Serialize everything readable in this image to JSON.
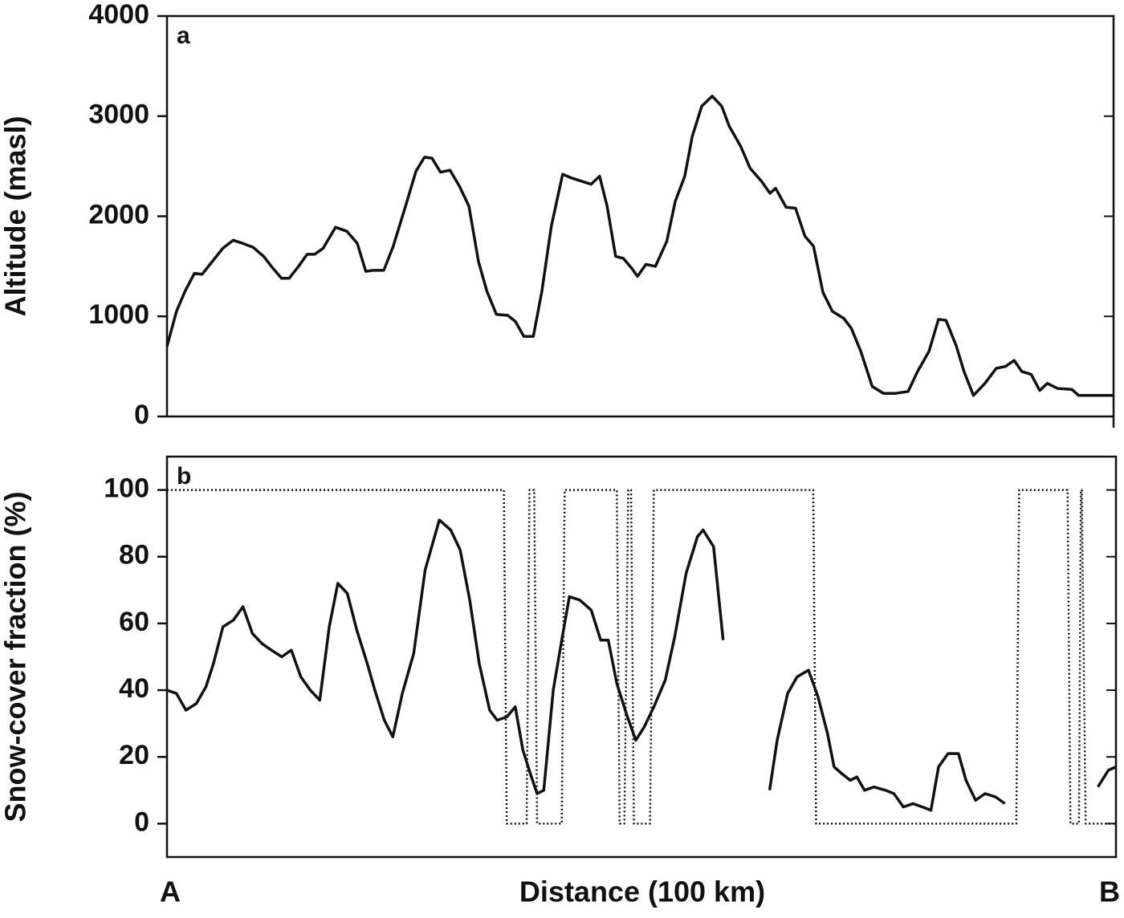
{
  "chart_data": [
    {
      "type": "line",
      "panel_label": "a",
      "ylabel": "Altitude (masl)",
      "xlim": [
        0,
        100
      ],
      "ylim": [
        0,
        4000
      ],
      "yticks": [
        0,
        1000,
        2000,
        3000,
        4000
      ],
      "series": [
        {
          "color": "#111111",
          "style": "solid",
          "x": [
            0,
            1.0,
            1.9,
            2.9,
            3.7,
            4.8,
            5.9,
            7.0,
            8.0,
            9.1,
            10.2,
            11.2,
            12.1,
            12.9,
            13.9,
            14.8,
            15.6,
            16.5,
            17.8,
            19.0,
            20.1,
            21.0,
            21.8,
            22.9,
            23.9,
            25.2,
            26.3,
            27.2,
            28.0,
            28.9,
            29.9,
            30.9,
            31.9,
            32.9,
            33.8,
            34.8,
            36.0,
            36.8,
            37.7,
            38.7,
            39.6,
            40.6,
            41.8,
            42.8,
            43.8,
            44.8,
            45.7,
            46.5,
            47.4,
            48.2,
            49.1,
            49.7,
            50.6,
            51.6,
            52.8,
            53.7,
            54.7,
            55.5,
            56.5,
            57.6,
            58.6,
            59.4,
            60.6,
            61.6,
            62.8,
            63.7,
            64.3,
            65.4,
            66.4,
            67.4,
            68.3,
            69.3,
            70.3,
            71.5,
            72.3,
            73.3,
            74.5,
            75.7,
            76.9,
            78.3,
            79.3,
            80.5,
            81.5,
            82.3,
            83.4,
            84.2,
            85.2,
            86.4,
            87.6,
            88.6,
            89.5,
            90.3,
            91.3,
            92.2,
            93.0,
            94.1,
            95.6,
            96.3,
            100
          ],
          "values": [
            700,
            1050,
            1250,
            1430,
            1420,
            1550,
            1680,
            1760,
            1730,
            1690,
            1600,
            1480,
            1380,
            1380,
            1500,
            1620,
            1620,
            1680,
            1890,
            1850,
            1730,
            1450,
            1460,
            1460,
            1700,
            2100,
            2450,
            2590,
            2580,
            2440,
            2460,
            2300,
            2100,
            1550,
            1250,
            1020,
            1010,
            950,
            800,
            800,
            1250,
            1900,
            2420,
            2380,
            2350,
            2320,
            2400,
            2100,
            1600,
            1580,
            1480,
            1400,
            1520,
            1500,
            1750,
            2150,
            2400,
            2800,
            3100,
            3200,
            3100,
            2900,
            2700,
            2480,
            2350,
            2230,
            2280,
            2090,
            2080,
            1800,
            1700,
            1240,
            1050,
            980,
            880,
            650,
            300,
            230,
            230,
            250,
            450,
            650,
            970,
            960,
            700,
            450,
            210,
            330,
            480,
            500,
            560,
            450,
            420,
            260,
            330,
            280,
            270,
            210,
            210
          ]
        }
      ]
    },
    {
      "type": "line",
      "panel_label": "b",
      "ylabel": "Snow-cover fraction (%)",
      "xlim": [
        0,
        100
      ],
      "ylim": [
        -10,
        110
      ],
      "yticks": [
        0,
        20,
        40,
        60,
        80,
        100
      ],
      "series": [
        {
          "color": "#111111",
          "style": "solid",
          "x": [
            0,
            1.0,
            2.0,
            3.1,
            4.1,
            4.9,
            5.9,
            7.0,
            8.0,
            9.0,
            10.0,
            11.0,
            12.1,
            13.1,
            14.1,
            15.1,
            16.1,
            17.1,
            18.0,
            19.0,
            20.0,
            21.1,
            21.9,
            22.9,
            23.8,
            24.8,
            26.0,
            27.2,
            28.7,
            29.9,
            30.9,
            31.9,
            32.9,
            34.0,
            34.8,
            35.8,
            36.7,
            37.5,
            38.4,
            39.0,
            39.7,
            40.7,
            41.6,
            42.4,
            43.5,
            44.7,
            45.7,
            46.5,
            47.4,
            48.4,
            49.4,
            50.3,
            51.3,
            52.5,
            53.5,
            54.7,
            55.9,
            56.5,
            57.6,
            58.6,
            61.0,
            63.5,
            64.3,
            65.4,
            66.4,
            67.6,
            68.6,
            69.6,
            70.3,
            71.1,
            72.0,
            72.7,
            73.5,
            74.5,
            75.7,
            76.6,
            77.6,
            78.6,
            79.6,
            80.5,
            81.3,
            82.3,
            83.4,
            84.2,
            85.2,
            86.2,
            87.3,
            88.3,
            92.7,
            98.1,
            99.2,
            100
          ],
          "values": [
            40,
            39,
            34,
            36,
            41,
            48,
            59,
            61,
            65,
            57,
            54,
            52,
            50,
            52,
            44,
            40,
            37,
            59,
            72,
            69,
            58,
            48,
            40,
            31,
            26,
            39,
            51,
            76,
            91,
            88,
            82,
            67,
            48,
            34,
            31,
            32,
            35,
            22,
            14,
            9,
            10,
            40,
            55,
            68,
            67,
            64,
            55,
            55,
            42,
            33,
            25,
            29,
            35,
            43,
            56,
            75,
            86,
            88,
            83,
            55,
            null,
            10,
            25,
            39,
            44,
            46,
            38,
            27,
            17,
            15,
            13,
            14,
            10,
            11,
            10,
            9,
            5,
            6,
            5,
            4,
            17,
            21,
            21,
            13,
            7,
            9,
            8,
            6,
            null,
            11,
            16,
            17
          ]
        },
        {
          "color": "#111111",
          "style": "dotted",
          "x": [
            0,
            35.5,
            35.8,
            37.9,
            38.2,
            38.7,
            39.0,
            41.6,
            41.9,
            47.4,
            47.7,
            48.2,
            48.6,
            48.9,
            49.2,
            50.9,
            51.3,
            68.1,
            68.4,
            89.5,
            89.8,
            94.9,
            95.2,
            96.1,
            96.3,
            96.4,
            96.8,
            100
          ],
          "values": [
            100,
            100,
            0,
            0,
            100,
            100,
            0,
            0,
            100,
            100,
            0,
            0,
            100,
            100,
            0,
            0,
            100,
            100,
            0,
            0,
            100,
            100,
            0,
            0,
            100,
            100,
            0,
            0
          ]
        }
      ]
    }
  ],
  "x_axis": {
    "start_label": "A",
    "end_label": "B",
    "label": "Distance (100 km)"
  }
}
